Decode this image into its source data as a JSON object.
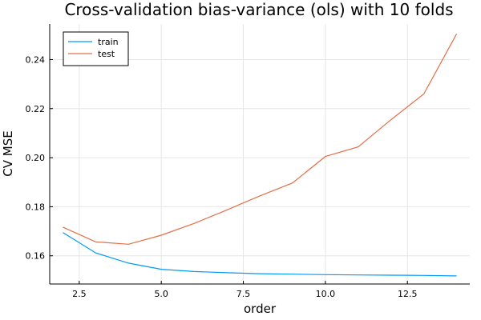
{
  "chart_data": {
    "type": "line",
    "title": "Cross-validation bias-variance (ols) with 10 folds",
    "xlabel": "order",
    "ylabel": "CV MSE",
    "xlim": [
      1.6,
      14.4
    ],
    "ylim": [
      0.1485,
      0.2545
    ],
    "xticks": [
      2.5,
      5.0,
      7.5,
      10.0,
      12.5
    ],
    "xtick_labels": [
      "2.5",
      "5.0",
      "7.5",
      "10.0",
      "12.5"
    ],
    "yticks": [
      0.16,
      0.18,
      0.2,
      0.22,
      0.24
    ],
    "ytick_labels": [
      "0.16",
      "0.18",
      "0.20",
      "0.22",
      "0.24"
    ],
    "grid": true,
    "legend_position": "top-left",
    "x": [
      2,
      3,
      4,
      5,
      6,
      7,
      8,
      9,
      10,
      11,
      12,
      13,
      14
    ],
    "series": [
      {
        "name": "train",
        "color": "#009AFA",
        "values": [
          0.1695,
          0.1612,
          0.157,
          0.1545,
          0.1536,
          0.1531,
          0.1527,
          0.1525,
          0.1523,
          0.1522,
          0.1521,
          0.152,
          0.1518
        ]
      },
      {
        "name": "test",
        "color": "#E26F46",
        "values": [
          0.1717,
          0.1657,
          0.1647,
          0.1684,
          0.1732,
          0.1787,
          0.1844,
          0.1897,
          0.2005,
          0.2044,
          0.2155,
          0.226,
          0.2505
        ]
      }
    ]
  }
}
